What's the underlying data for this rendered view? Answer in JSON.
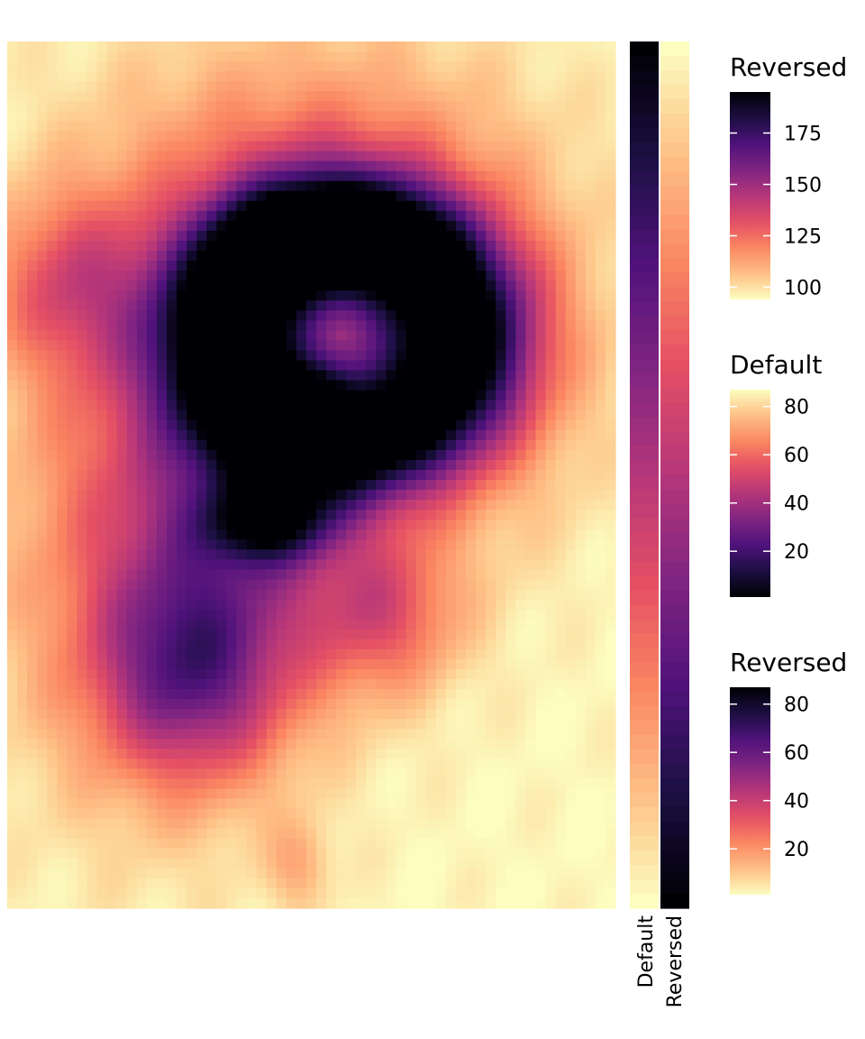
{
  "chart_data": {
    "type": "heatmap",
    "title": "",
    "xlabel": "",
    "ylabel": "",
    "colormap": "magma",
    "grid_rows": 87,
    "grid_cols": 61,
    "value_range": [
      94,
      195
    ],
    "row_annotations": [
      {
        "label": "Default",
        "colormap": "magma",
        "direction": "dark-top-to-light-bottom"
      },
      {
        "label": "Reversed",
        "colormap": "magma_r",
        "direction": "light-top-to-dark-bottom"
      }
    ],
    "legends": [
      {
        "title": "Reversed",
        "ticks": [
          "175",
          "150",
          "125",
          "100"
        ],
        "tick_values": [
          175,
          150,
          125,
          100
        ],
        "range": [
          94,
          195
        ],
        "scale": "magma_r"
      },
      {
        "title": "Default",
        "ticks": [
          "80",
          "60",
          "40",
          "20"
        ],
        "tick_values": [
          80,
          60,
          40,
          20
        ],
        "range": [
          1,
          87
        ],
        "scale": "magma"
      },
      {
        "title": "Reversed",
        "ticks": [
          "80",
          "60",
          "40",
          "20"
        ],
        "tick_values": [
          80,
          60,
          40,
          20
        ],
        "range": [
          1,
          87
        ],
        "scale": "magma_r"
      }
    ],
    "value_field": {
      "base": 95,
      "features": [
        {
          "kind": "ring",
          "cx": 0.55,
          "cy": 0.34,
          "rx": 0.19,
          "ry": 0.12,
          "width": 0.075,
          "amp": 90
        },
        {
          "kind": "blob",
          "cx": 0.5,
          "cy": 0.26,
          "rx": 0.34,
          "ry": 0.22,
          "amp": 45
        },
        {
          "kind": "blob",
          "cx": 0.52,
          "cy": 0.23,
          "rx": 0.14,
          "ry": 0.05,
          "amp": 35
        },
        {
          "kind": "blob",
          "cx": 0.47,
          "cy": 0.44,
          "rx": 0.08,
          "ry": 0.05,
          "amp": 40
        },
        {
          "kind": "blob",
          "cx": 0.43,
          "cy": 0.555,
          "rx": 0.1,
          "ry": 0.045,
          "amp": 55
        },
        {
          "kind": "blob",
          "cx": 0.38,
          "cy": 0.55,
          "rx": 0.22,
          "ry": 0.2,
          "amp": 35
        },
        {
          "kind": "blob",
          "cx": 0.3,
          "cy": 0.73,
          "rx": 0.15,
          "ry": 0.12,
          "amp": 48
        },
        {
          "kind": "blob",
          "cx": 0.62,
          "cy": 0.66,
          "rx": 0.12,
          "ry": 0.09,
          "amp": 30
        },
        {
          "kind": "blob",
          "cx": 0.1,
          "cy": 0.28,
          "rx": 0.12,
          "ry": 0.1,
          "amp": 28
        },
        {
          "kind": "blob",
          "cx": 0.23,
          "cy": 0.6,
          "rx": 0.25,
          "ry": 0.28,
          "amp": 22
        },
        {
          "kind": "blob",
          "cx": 0.78,
          "cy": 0.4,
          "rx": 0.18,
          "ry": 0.18,
          "amp": 15
        },
        {
          "kind": "blob",
          "cx": 0.48,
          "cy": 0.95,
          "rx": 0.05,
          "ry": 0.05,
          "amp": 15
        }
      ]
    }
  }
}
